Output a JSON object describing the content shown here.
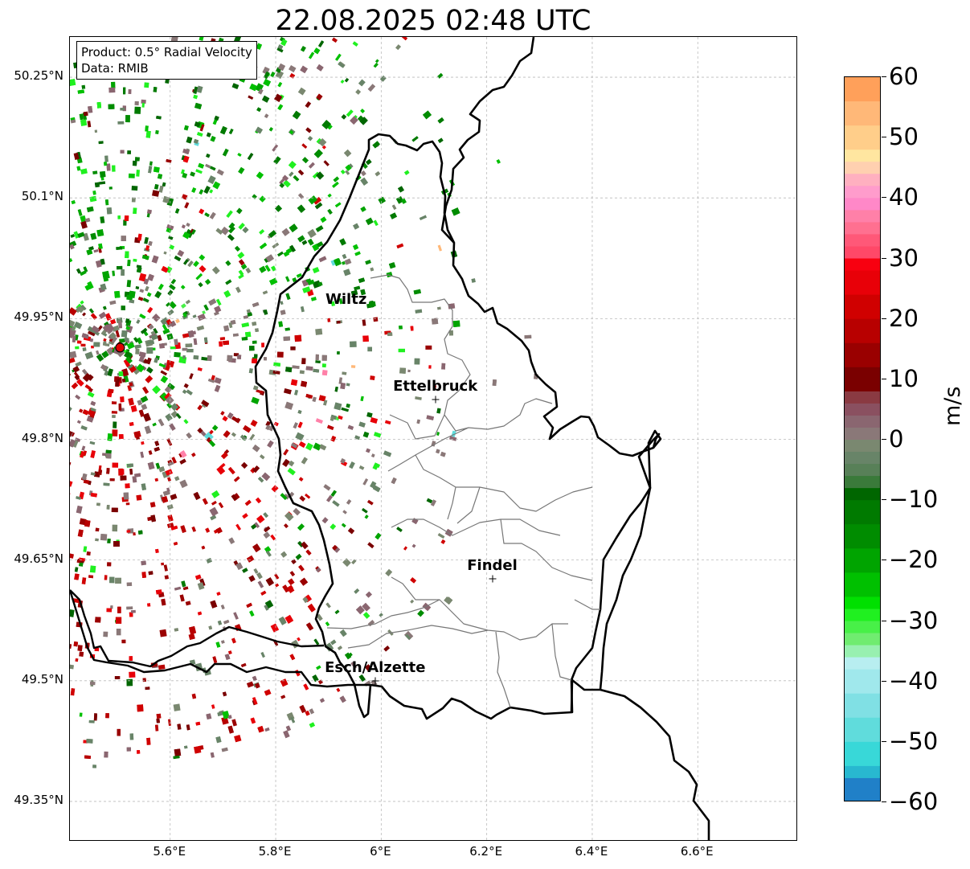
{
  "title": "22.08.2025 02:48 UTC",
  "info_box": {
    "line1": "Product: 0.5° Radial Velocity",
    "line2": "Data: RMIB"
  },
  "axes": {
    "lon_range": [
      5.41,
      6.79
    ],
    "lat_range": [
      49.3,
      50.3
    ],
    "y_ticks": [
      {
        "value": 50.25,
        "label": "50.25°N"
      },
      {
        "value": 50.1,
        "label": "50.1°N"
      },
      {
        "value": 49.95,
        "label": "49.95°N"
      },
      {
        "value": 49.8,
        "label": "49.8°N"
      },
      {
        "value": 49.65,
        "label": "49.65°N"
      },
      {
        "value": 49.5,
        "label": "49.5°N"
      },
      {
        "value": 49.35,
        "label": "49.35°N"
      }
    ],
    "x_ticks": [
      {
        "value": 5.6,
        "label": "5.6°E"
      },
      {
        "value": 5.8,
        "label": "5.8°E"
      },
      {
        "value": 6.0,
        "label": "6°E"
      },
      {
        "value": 6.2,
        "label": "6.2°E"
      },
      {
        "value": 6.4,
        "label": "6.4°E"
      },
      {
        "value": 6.6,
        "label": "6.6°E"
      }
    ],
    "gridlines": true
  },
  "radar_site": {
    "lon": 5.505,
    "lat": 49.914,
    "color": "#e00000"
  },
  "cities": [
    {
      "name": "Wiltz",
      "lon": 5.935,
      "lat": 49.966,
      "marker": false
    },
    {
      "name": "Ettelbruck",
      "lon": 6.104,
      "lat": 49.848,
      "marker": true
    },
    {
      "name": "Findel",
      "lon": 6.212,
      "lat": 49.626,
      "marker": true
    },
    {
      "name": "Esch/Alzette",
      "lon": 5.99,
      "lat": 49.499,
      "marker": true
    }
  ],
  "colorbar": {
    "label": "m/s",
    "min": -60,
    "max": 60,
    "ticks": [
      {
        "value": 60,
        "label": "60"
      },
      {
        "value": 50,
        "label": "50"
      },
      {
        "value": 40,
        "label": "40"
      },
      {
        "value": 30,
        "label": "30"
      },
      {
        "value": 20,
        "label": "20"
      },
      {
        "value": 10,
        "label": "10"
      },
      {
        "value": 0,
        "label": "0"
      },
      {
        "value": -10,
        "label": "−10"
      },
      {
        "value": -20,
        "label": "−20"
      },
      {
        "value": -30,
        "label": "−30"
      },
      {
        "value": -40,
        "label": "−40"
      },
      {
        "value": -50,
        "label": "−50"
      },
      {
        "value": -60,
        "label": "−60"
      }
    ],
    "segments": [
      {
        "from": 56,
        "to": 60,
        "color": "#ffa05a"
      },
      {
        "from": 52,
        "to": 56,
        "color": "#ffb878"
      },
      {
        "from": 48,
        "to": 52,
        "color": "#ffce8a"
      },
      {
        "from": 46,
        "to": 48,
        "color": "#ffe6a0"
      },
      {
        "from": 44,
        "to": 46,
        "color": "#ffd0b0"
      },
      {
        "from": 42,
        "to": 44,
        "color": "#ffb0c0"
      },
      {
        "from": 40,
        "to": 42,
        "color": "#ff9ccc"
      },
      {
        "from": 38,
        "to": 40,
        "color": "#ff88c8"
      },
      {
        "from": 36,
        "to": 38,
        "color": "#ff80a8"
      },
      {
        "from": 34,
        "to": 36,
        "color": "#ff7090"
      },
      {
        "from": 32,
        "to": 34,
        "color": "#ff5878"
      },
      {
        "from": 30,
        "to": 32,
        "color": "#ff4868"
      },
      {
        "from": 28,
        "to": 30,
        "color": "#f80010"
      },
      {
        "from": 24,
        "to": 28,
        "color": "#e80008"
      },
      {
        "from": 20,
        "to": 24,
        "color": "#d00000"
      },
      {
        "from": 16,
        "to": 20,
        "color": "#b80000"
      },
      {
        "from": 12,
        "to": 16,
        "color": "#9a0000"
      },
      {
        "from": 8,
        "to": 12,
        "color": "#7a0000"
      },
      {
        "from": 6,
        "to": 8,
        "color": "#8a3a42"
      },
      {
        "from": 4,
        "to": 6,
        "color": "#8a5060"
      },
      {
        "from": 2,
        "to": 4,
        "color": "#8a6670"
      },
      {
        "from": 0,
        "to": 2,
        "color": "#8a7878"
      },
      {
        "from": -2,
        "to": 0,
        "color": "#7a8870"
      },
      {
        "from": -4,
        "to": -2,
        "color": "#688468"
      },
      {
        "from": -6,
        "to": -4,
        "color": "#588058"
      },
      {
        "from": -8,
        "to": -6,
        "color": "#3a7a3a"
      },
      {
        "from": -10,
        "to": -8,
        "color": "#006600"
      },
      {
        "from": -14,
        "to": -10,
        "color": "#007a00"
      },
      {
        "from": -18,
        "to": -14,
        "color": "#008c00"
      },
      {
        "from": -22,
        "to": -18,
        "color": "#00a400"
      },
      {
        "from": -26,
        "to": -22,
        "color": "#00c000"
      },
      {
        "from": -28,
        "to": -26,
        "color": "#00e000"
      },
      {
        "from": -30,
        "to": -28,
        "color": "#20f020"
      },
      {
        "from": -32,
        "to": -30,
        "color": "#48f048"
      },
      {
        "from": -34,
        "to": -32,
        "color": "#70ec70"
      },
      {
        "from": -36,
        "to": -34,
        "color": "#98f0b0"
      },
      {
        "from": -38,
        "to": -36,
        "color": "#b8eef0"
      },
      {
        "from": -42,
        "to": -38,
        "color": "#a0e8ec"
      },
      {
        "from": -46,
        "to": -42,
        "color": "#80e0e4"
      },
      {
        "from": -50,
        "to": -46,
        "color": "#60dcdc"
      },
      {
        "from": -54,
        "to": -50,
        "color": "#38d8d8"
      },
      {
        "from": -56,
        "to": -54,
        "color": "#28b8d0"
      },
      {
        "from": -60,
        "to": -56,
        "color": "#2080c8"
      }
    ]
  },
  "palette": {
    "receding_red": [
      "#7a0000",
      "#9a0000",
      "#b80000",
      "#d00000",
      "#e80008"
    ],
    "zero_grey": [
      "#8a7878",
      "#7a8870",
      "#8a6670",
      "#688468"
    ],
    "approaching_green": [
      "#006600",
      "#007a00",
      "#008c00",
      "#00a400",
      "#00c000",
      "#20f020"
    ],
    "accents": [
      "#ff4868",
      "#ff80a8",
      "#ffb878",
      "#60dcdc",
      "#48f048"
    ]
  }
}
